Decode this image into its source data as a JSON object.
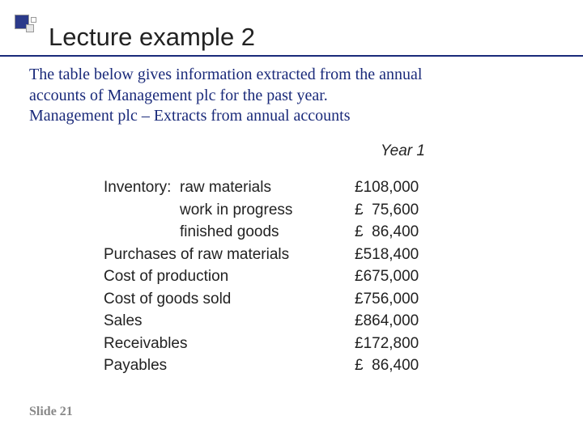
{
  "decor": {
    "accent_color": "#2b3a8a",
    "underline_color": "#1a2a7a"
  },
  "title": "Lecture example 2",
  "intro_line1": "The table below gives information extracted from the annual",
  "intro_line2": "accounts of Management plc for the past year.",
  "intro_line3": "Management plc – Extracts from annual accounts",
  "year_header": "Year 1",
  "rows": [
    {
      "label": "Inventory:  raw materials",
      "indent": false,
      "value": "£108,000"
    },
    {
      "label": "work in progress",
      "indent": true,
      "value": "£  75,600"
    },
    {
      "label": "finished goods",
      "indent": true,
      "value": "£  86,400"
    },
    {
      "label": "Purchases of raw materials",
      "indent": false,
      "value": "£518,400"
    },
    {
      "label": "Cost of production",
      "indent": false,
      "value": "£675,000"
    },
    {
      "label": "Cost of goods sold",
      "indent": false,
      "value": "£756,000"
    },
    {
      "label": "Sales",
      "indent": false,
      "value": "£864,000"
    },
    {
      "label": "Receivables",
      "indent": false,
      "value": "£172,800"
    },
    {
      "label": "Payables",
      "indent": false,
      "value": "£  86,400"
    }
  ],
  "slide_label": "Slide 21",
  "typography": {
    "title_fontsize": 31,
    "intro_fontsize": 20,
    "intro_color": "#1a2a7a",
    "table_fontsize": 19,
    "slide_label_color": "#888888"
  }
}
